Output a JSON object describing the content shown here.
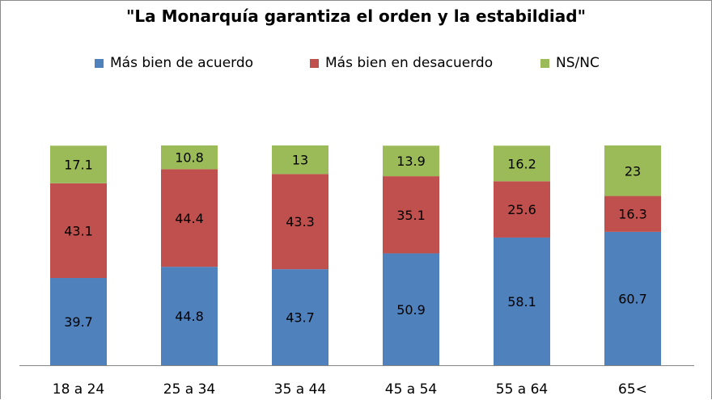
{
  "chart_data": {
    "type": "bar",
    "stacked": true,
    "title": "\"La Monarquía garantiza el orden y la estabildiad\"",
    "categories": [
      "18 a 24",
      "25 a 34",
      "35 a 44",
      "45 a 54",
      "55 a 64",
      "65<"
    ],
    "series": [
      {
        "name": "Más bien de acuerdo",
        "color": "#4f81bd",
        "values": [
          39.7,
          44.8,
          43.7,
          50.9,
          58.1,
          60.7
        ],
        "labels": [
          "39.7",
          "44.8",
          "43.7",
          "50.9",
          "58.1",
          "60.7"
        ]
      },
      {
        "name": "Más bien en desacuerdo",
        "color": "#c0504d",
        "values": [
          43.1,
          44.4,
          43.3,
          35.1,
          25.6,
          16.3
        ],
        "labels": [
          "43.1",
          "44.4",
          "43.3",
          "35.1",
          "25.6",
          "16.3"
        ]
      },
      {
        "name": "NS/NC",
        "color": "#9bbb59",
        "values": [
          17.1,
          10.8,
          13,
          13.9,
          16.2,
          23
        ],
        "labels": [
          "17.1",
          "10.8",
          "13",
          "13.9",
          "16.2",
          "23"
        ]
      }
    ],
    "ylim": [
      0,
      100
    ],
    "legend": "top",
    "grid": false,
    "xlabel": "",
    "ylabel": ""
  }
}
